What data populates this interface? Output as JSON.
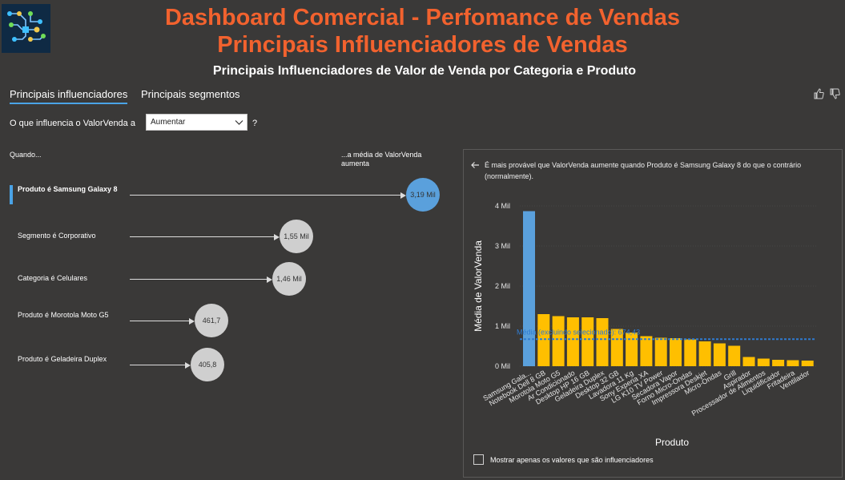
{
  "header": {
    "title_line1": "Dashboard Comercial - Perfomance de Vendas",
    "title_line2": "Principais Influenciadores de Vendas",
    "subtitle": "Principais Influenciadores de Valor de Venda por Categoria e Produto",
    "logo_icon": "circuit-logo-icon",
    "accent_color": "#f2622e"
  },
  "tabs": [
    {
      "label": "Principais influenciadores",
      "active": true
    },
    {
      "label": "Principais segmentos",
      "active": false
    }
  ],
  "controls": {
    "question_label": "O que influencia o ValorVenda a",
    "select_value": "Aumentar",
    "help": "?"
  },
  "influencers": {
    "col_when": "Quando...",
    "col_avg": "...a média de ValorVenda aumenta",
    "items": [
      {
        "label": "Produto é Samsung Galaxy 8",
        "value_label": "3,19 Mil",
        "value": 3190,
        "selected": true
      },
      {
        "label": "Segmento é Corporativo",
        "value_label": "1,55 Mil",
        "value": 1550,
        "selected": false
      },
      {
        "label": "Categoria é Celulares",
        "value_label": "1,46 Mil",
        "value": 1460,
        "selected": false
      },
      {
        "label": "Produto é Morotola Moto G5",
        "value_label": "461,7",
        "value": 461.7,
        "selected": false
      },
      {
        "label": "Produto é Geladeira Duplex",
        "value_label": "405,8",
        "value": 405.8,
        "selected": false
      }
    ]
  },
  "detail": {
    "description": "É mais provável que ValorVenda aumente quando Produto é Samsung Galaxy 8 do que o contrário (normalmente).",
    "checkbox_label": "Mostrar apenas os valores que são influenciadores"
  },
  "chart_data": {
    "type": "bar",
    "xlabel": "Produto",
    "ylabel": "Média de ValorVenda",
    "ylim": [
      0,
      4000
    ],
    "y_ticks": [
      "0 Mil",
      "1 Mil",
      "2 Mil",
      "3 Mil",
      "4 Mil"
    ],
    "reference_line": {
      "label": "Média (excluindo selecionado): 674,43",
      "value": 674.43,
      "color": "#2f7bd1"
    },
    "highlight_color": "#5aa0dc",
    "bar_color": "#ffbf00",
    "categories": [
      "Samsung Gala...",
      "Notebook Dell 8 GB",
      "Morotola Moto G5",
      "Ar Condicionado",
      "Desktop HP 16 GB",
      "Geladeira Duplex",
      "Desktop 32 GB",
      "Lavadora 11 Kg",
      "Sony Experia XA",
      "LG K10 TV Power",
      "Secadora Vapor",
      "Forno Micro-Ondas",
      "Impressora Deskjet",
      "Micro-Ondas",
      "Grill",
      "Aspirador",
      "Processador de Alimentos",
      "Liquidificador",
      "Fritadeira",
      "Ventilador"
    ],
    "values": [
      3870,
      1300,
      1250,
      1220,
      1220,
      1200,
      930,
      840,
      750,
      710,
      700,
      670,
      620,
      570,
      510,
      230,
      190,
      160,
      150,
      140
    ],
    "highlighted_index": 0
  }
}
